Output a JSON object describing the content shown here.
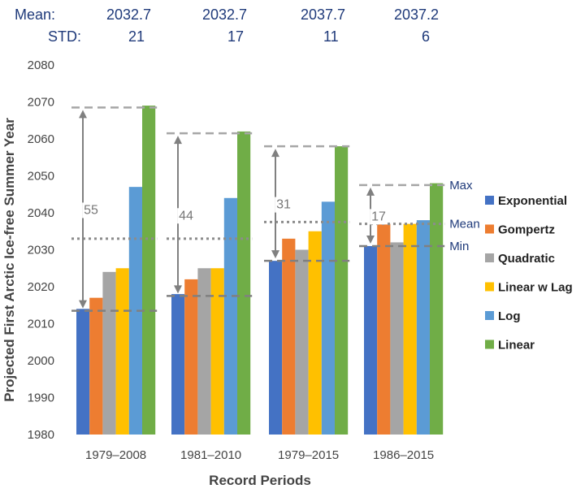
{
  "stats": {
    "mean_label": "Mean:",
    "std_label": "STD:",
    "means": [
      "2032.7",
      "2032.7",
      "2037.7",
      "2037.2"
    ],
    "stds": [
      "21",
      "17",
      "11",
      "6"
    ]
  },
  "chart_data": {
    "type": "bar",
    "xlabel": "Record Periods",
    "ylabel": "Projected First Arctic Ice-free Summer Year",
    "ylim": [
      1980,
      2080
    ],
    "yticks": [
      1980,
      1990,
      2000,
      2010,
      2020,
      2030,
      2040,
      2050,
      2060,
      2070,
      2080
    ],
    "categories": [
      "1979–2008",
      "1981–2010",
      "1979–2015",
      "1986–2015"
    ],
    "series": [
      {
        "name": "Exponential",
        "color": "#4472c4",
        "values": [
          2014,
          2018,
          2027,
          2031
        ]
      },
      {
        "name": "Gompertz",
        "color": "#ed7d31",
        "values": [
          2017,
          2022,
          2033,
          2037
        ]
      },
      {
        "name": "Quadratic",
        "color": "#a5a5a5",
        "values": [
          2024,
          2025,
          2030,
          2032
        ]
      },
      {
        "name": "Linear w Lag",
        "color": "#ffc000",
        "values": [
          2025,
          2025,
          2035,
          2037
        ]
      },
      {
        "name": "Log",
        "color": "#5b9bd5",
        "values": [
          2047,
          2044,
          2043,
          2038
        ]
      },
      {
        "name": "Linear",
        "color": "#70ad47",
        "values": [
          2069,
          2062,
          2058,
          2048
        ]
      }
    ],
    "groups": [
      {
        "max": 2068.5,
        "mean": 2033,
        "min": 2013.5,
        "gap_label": "55"
      },
      {
        "max": 2061.5,
        "mean": 2033,
        "min": 2017.5,
        "gap_label": "44"
      },
      {
        "max": 2058,
        "mean": 2037.5,
        "min": 2027,
        "gap_label": "31"
      },
      {
        "max": 2047.5,
        "mean": 2037,
        "min": 2031,
        "gap_label": "17"
      }
    ],
    "reference_labels": {
      "max": "Max",
      "mean": "Mean",
      "min": "Min"
    },
    "legend_position": "right",
    "grid": false
  }
}
